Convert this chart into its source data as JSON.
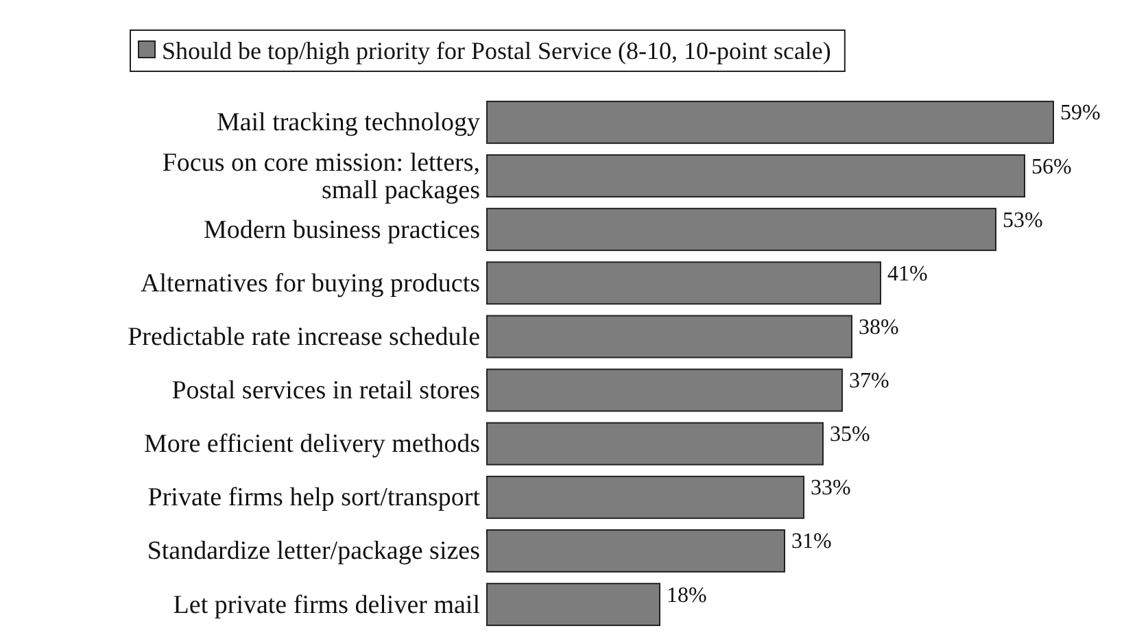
{
  "chart_data": {
    "type": "bar",
    "orientation": "horizontal",
    "legend": "top",
    "categories": [
      "Mail tracking technology",
      "Focus on core mission: letters,\nsmall packages",
      "Modern business practices",
      "Alternatives for buying products",
      "Predictable rate increase schedule",
      "Postal services in retail stores",
      "More efficient delivery methods",
      "Private firms help sort/transport",
      "Standardize letter/package sizes",
      "Let private firms deliver mail"
    ],
    "series": [
      {
        "name": "Should be top/high priority for Postal Service (8-10, 10-point scale)",
        "color": "#7d7d7d",
        "values": [
          59,
          56,
          53,
          41,
          38,
          37,
          35,
          33,
          31,
          18
        ],
        "value_labels": [
          "59%",
          "56%",
          "53%",
          "41%",
          "38%",
          "37%",
          "35%",
          "33%",
          "31%",
          "18%"
        ]
      }
    ]
  }
}
